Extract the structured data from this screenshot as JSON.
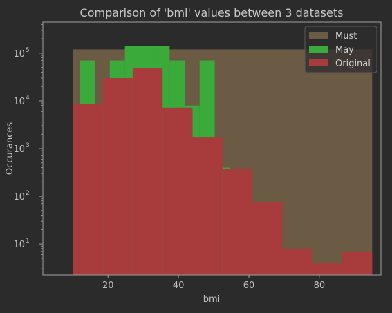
{
  "chart_data": {
    "type": "bar",
    "title": "Comparison of 'bmi' values between 3 datasets",
    "xlabel": "bmi",
    "ylabel": "Occurances",
    "xlim": [
      1.5,
      97.5
    ],
    "ylim_log10": [
      0.35,
      5.65
    ],
    "yscale": "log",
    "grid": false,
    "legend_position": "top-right",
    "x_ticks": [
      {
        "value": 20,
        "label": "20"
      },
      {
        "value": 40,
        "label": "40"
      },
      {
        "value": 60,
        "label": "60"
      },
      {
        "value": 80,
        "label": "80"
      }
    ],
    "y_ticks": [
      {
        "value": 10,
        "base": "10",
        "exp": "1"
      },
      {
        "value": 100,
        "base": "10",
        "exp": "2"
      },
      {
        "value": 1000,
        "base": "10",
        "exp": "3"
      },
      {
        "value": 10000,
        "base": "10",
        "exp": "4"
      },
      {
        "value": 100000,
        "base": "10",
        "exp": "5"
      }
    ],
    "series": [
      {
        "name": "Must",
        "color": "#6b5a44",
        "bins": [
          [
            10,
            95
          ]
        ],
        "values": [
          120000
        ]
      },
      {
        "name": "May",
        "color": "#3aaa3a",
        "bins": [
          [
            12,
            16.3
          ],
          [
            16.3,
            20.5
          ],
          [
            20.5,
            24.8
          ],
          [
            24.8,
            29
          ],
          [
            29,
            33.3
          ],
          [
            33.3,
            37.5
          ],
          [
            37.5,
            41.8
          ],
          [
            41.8,
            46
          ],
          [
            46,
            50.3
          ],
          [
            50.3,
            54.5
          ]
        ],
        "values": [
          70000,
          8000,
          70000,
          140000,
          140000,
          140000,
          70000,
          8000,
          70000,
          400
        ]
      },
      {
        "name": "Original",
        "color": "#a83c3c",
        "bins": [
          [
            10,
            18.5
          ],
          [
            18.5,
            27
          ],
          [
            27,
            35.5
          ],
          [
            35.5,
            44
          ],
          [
            44,
            52.5
          ],
          [
            52.5,
            61
          ],
          [
            61,
            69.5
          ],
          [
            69.5,
            78
          ],
          [
            78,
            86.5
          ],
          [
            86.5,
            95
          ]
        ],
        "values": [
          8500,
          30000,
          48000,
          7200,
          1700,
          370,
          75,
          8,
          4,
          7
        ]
      }
    ]
  }
}
